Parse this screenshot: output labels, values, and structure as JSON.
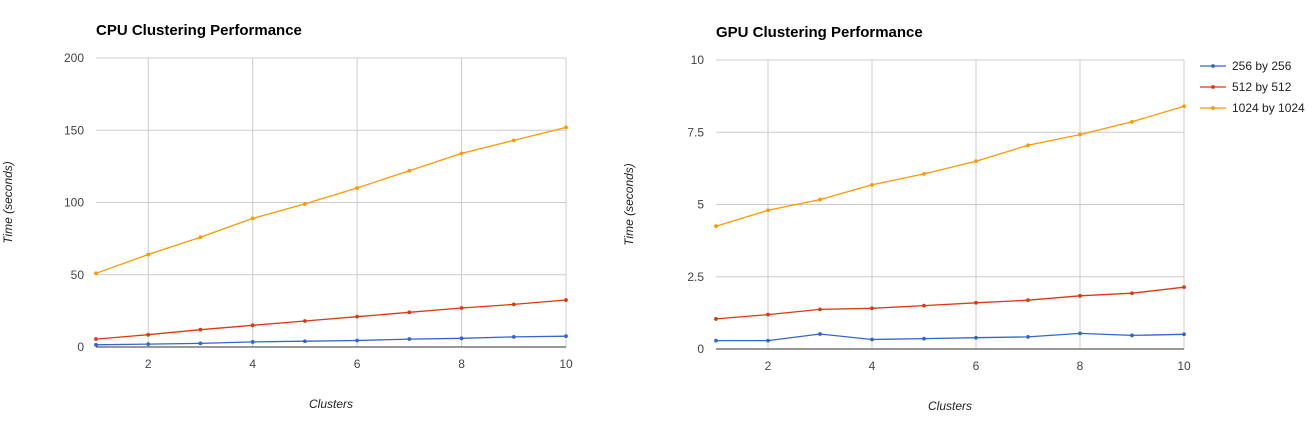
{
  "chart_data": [
    {
      "type": "line",
      "title": "CPU Clustering Performance",
      "xlabel": "Clusters",
      "ylabel": "Time (seconds)",
      "x": [
        1,
        2,
        3,
        4,
        5,
        6,
        7,
        8,
        9,
        10
      ],
      "xlim": [
        1,
        10
      ],
      "xticks": [
        2,
        4,
        6,
        8,
        10
      ],
      "xtick_labels": [
        "2",
        "4",
        "6",
        "8",
        "10"
      ],
      "ylim": [
        0,
        200
      ],
      "yticks": [
        0,
        50,
        100,
        150,
        200
      ],
      "ytick_labels": [
        "0",
        "50",
        "100",
        "150",
        "200"
      ],
      "grid": true,
      "legend": "none",
      "series": [
        {
          "name": "256 by 256",
          "color": "#3366cc",
          "values": [
            1.5,
            2,
            2.5,
            3.5,
            4,
            4.5,
            5.5,
            6,
            7,
            7.5
          ]
        },
        {
          "name": "512 by 512",
          "color": "#dc3912",
          "values": [
            5.5,
            8.5,
            12,
            15,
            18,
            21,
            24,
            27,
            29.5,
            32.5
          ]
        },
        {
          "name": "1024 by 1024",
          "color": "#ff9900",
          "values": [
            51,
            64,
            76,
            89,
            99,
            110,
            122,
            134,
            143,
            152
          ]
        }
      ]
    },
    {
      "type": "line",
      "title": "GPU Clustering Performance",
      "xlabel": "Clusters",
      "ylabel": "Time (seconds)",
      "x": [
        1,
        2,
        3,
        4,
        5,
        6,
        7,
        8,
        9,
        10
      ],
      "xlim": [
        1,
        10
      ],
      "xticks": [
        2,
        4,
        6,
        8,
        10
      ],
      "xtick_labels": [
        "2",
        "4",
        "6",
        "8",
        "10"
      ],
      "ylim": [
        0,
        10
      ],
      "yticks": [
        0,
        2.5,
        5,
        7.5,
        10
      ],
      "ytick_labels": [
        "0",
        "2.5",
        "5",
        "7.5",
        "10"
      ],
      "grid": true,
      "legend": "right",
      "series": [
        {
          "name": "256 by 256",
          "color": "#3366cc",
          "values": [
            0.29,
            0.29,
            0.52,
            0.33,
            0.36,
            0.39,
            0.42,
            0.54,
            0.47,
            0.51
          ]
        },
        {
          "name": "512 by 512",
          "color": "#dc3912",
          "values": [
            1.04,
            1.19,
            1.37,
            1.41,
            1.5,
            1.6,
            1.69,
            1.84,
            1.93,
            2.14
          ]
        },
        {
          "name": "1024 by 1024",
          "color": "#ff9900",
          "values": [
            4.25,
            4.8,
            5.17,
            5.68,
            6.06,
            6.5,
            7.05,
            7.42,
            7.86,
            8.4
          ]
        }
      ]
    }
  ]
}
